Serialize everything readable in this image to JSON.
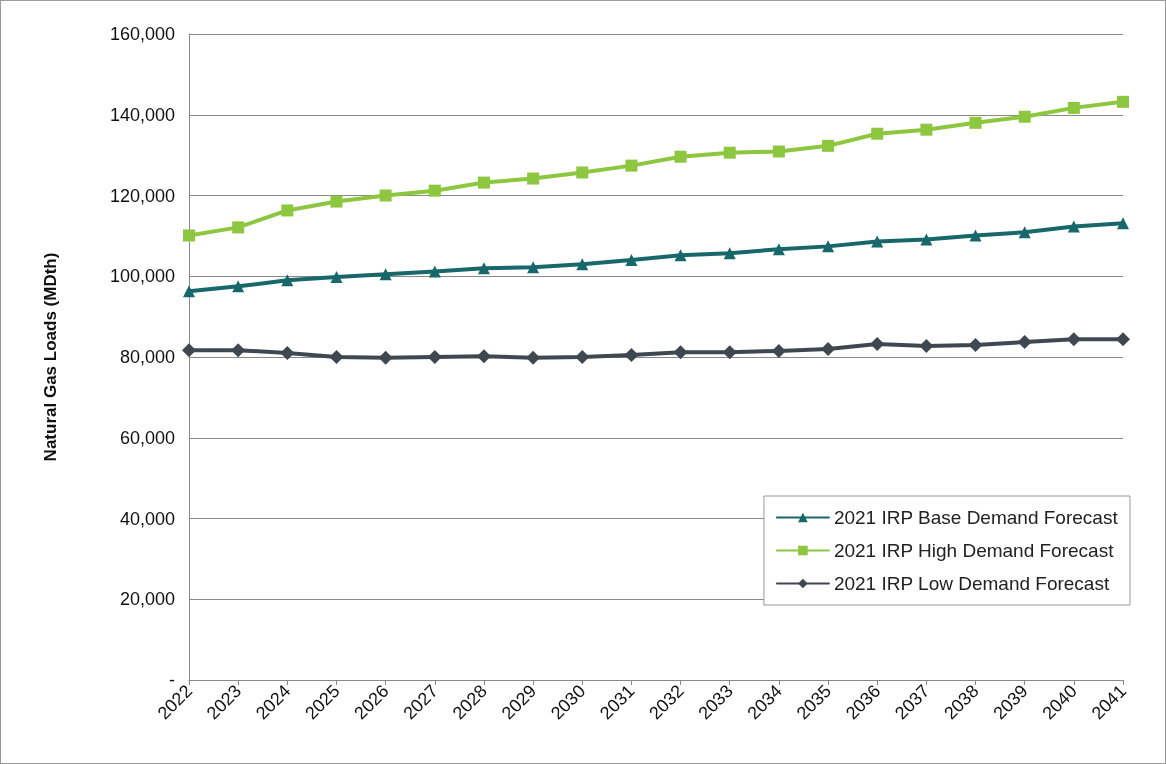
{
  "chart_data": {
    "type": "line",
    "ylabel": "Natural Gas Loads (MDth)",
    "categories": [
      "2022",
      "2023",
      "2024",
      "2025",
      "2026",
      "2027",
      "2028",
      "2029",
      "2030",
      "2031",
      "2032",
      "2033",
      "2034",
      "2035",
      "2036",
      "2037",
      "2038",
      "2039",
      "2040",
      "2041"
    ],
    "series": [
      {
        "name": "2021 IRP Base Demand Forecast",
        "color": "#17676b",
        "marker": "triangle",
        "values": [
          96300,
          97500,
          99000,
          99800,
          100500,
          101200,
          102000,
          102200,
          103000,
          104000,
          105200,
          105700,
          106700,
          107400,
          108600,
          109100,
          110100,
          110900,
          112300,
          113100
        ]
      },
      {
        "name": "2021 IRP High Demand Forecast",
        "color": "#8dc63f",
        "marker": "square",
        "values": [
          110100,
          112100,
          116300,
          118500,
          120000,
          121200,
          123200,
          124200,
          125700,
          127400,
          129600,
          130600,
          130900,
          132300,
          135300,
          136300,
          138000,
          139500,
          141700,
          143200
        ]
      },
      {
        "name": "2021 IRP Low Demand Forecast",
        "color": "#3f4751",
        "marker": "diamond",
        "values": [
          81700,
          81700,
          81000,
          80000,
          79800,
          80000,
          80200,
          79800,
          80000,
          80500,
          81200,
          81200,
          81500,
          82000,
          83200,
          82700,
          83000,
          83700,
          84400,
          84400
        ]
      }
    ],
    "ylim": [
      0,
      160000
    ],
    "yticks": [
      {
        "value": 0,
        "label": "-"
      },
      {
        "value": 20000,
        "label": "20,000"
      },
      {
        "value": 40000,
        "label": "40,000"
      },
      {
        "value": 60000,
        "label": "60,000"
      },
      {
        "value": 80000,
        "label": "80,000"
      },
      {
        "value": 100000,
        "label": "100,000"
      },
      {
        "value": 120000,
        "label": "120,000"
      },
      {
        "value": 140000,
        "label": "140,000"
      },
      {
        "value": 160000,
        "label": "160,000"
      }
    ],
    "grid": "y",
    "legend": "bottom right",
    "line_style": "solid"
  }
}
